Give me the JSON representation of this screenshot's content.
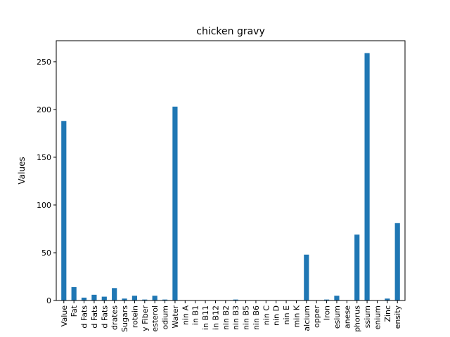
{
  "chart_data": {
    "type": "bar",
    "title": "chicken gravy",
    "xlabel": "",
    "ylabel": "Values",
    "ylim": [
      0,
      272
    ],
    "yticks": [
      0,
      50,
      100,
      150,
      200,
      250
    ],
    "grid": false,
    "legend": "none",
    "bar_color": "#1f77b4",
    "categories": [
      "Value",
      "Fat",
      "d Fats",
      "d Fats",
      "d Fats",
      "drates",
      "Sugars",
      "rotein",
      "y Fiber",
      "esterol",
      "odium",
      "Water",
      "nin A",
      "in B1",
      "in B11",
      "in B12",
      "nin B2",
      "nin B3",
      "nin B5",
      "nin B6",
      "nin C",
      "nin D",
      "nin E",
      "min K",
      "alcium",
      "opper",
      "Iron",
      "esium",
      "anese",
      "phorus",
      "ssium",
      "enium",
      "Zinc",
      "ensity"
    ],
    "values": [
      188,
      14,
      3,
      6,
      4,
      13,
      2,
      5,
      1,
      5,
      1,
      203,
      0,
      0,
      0,
      0,
      0,
      1,
      0,
      0,
      0,
      0,
      0,
      0,
      48,
      0,
      1,
      5,
      0,
      69,
      259,
      0,
      2,
      81
    ]
  }
}
